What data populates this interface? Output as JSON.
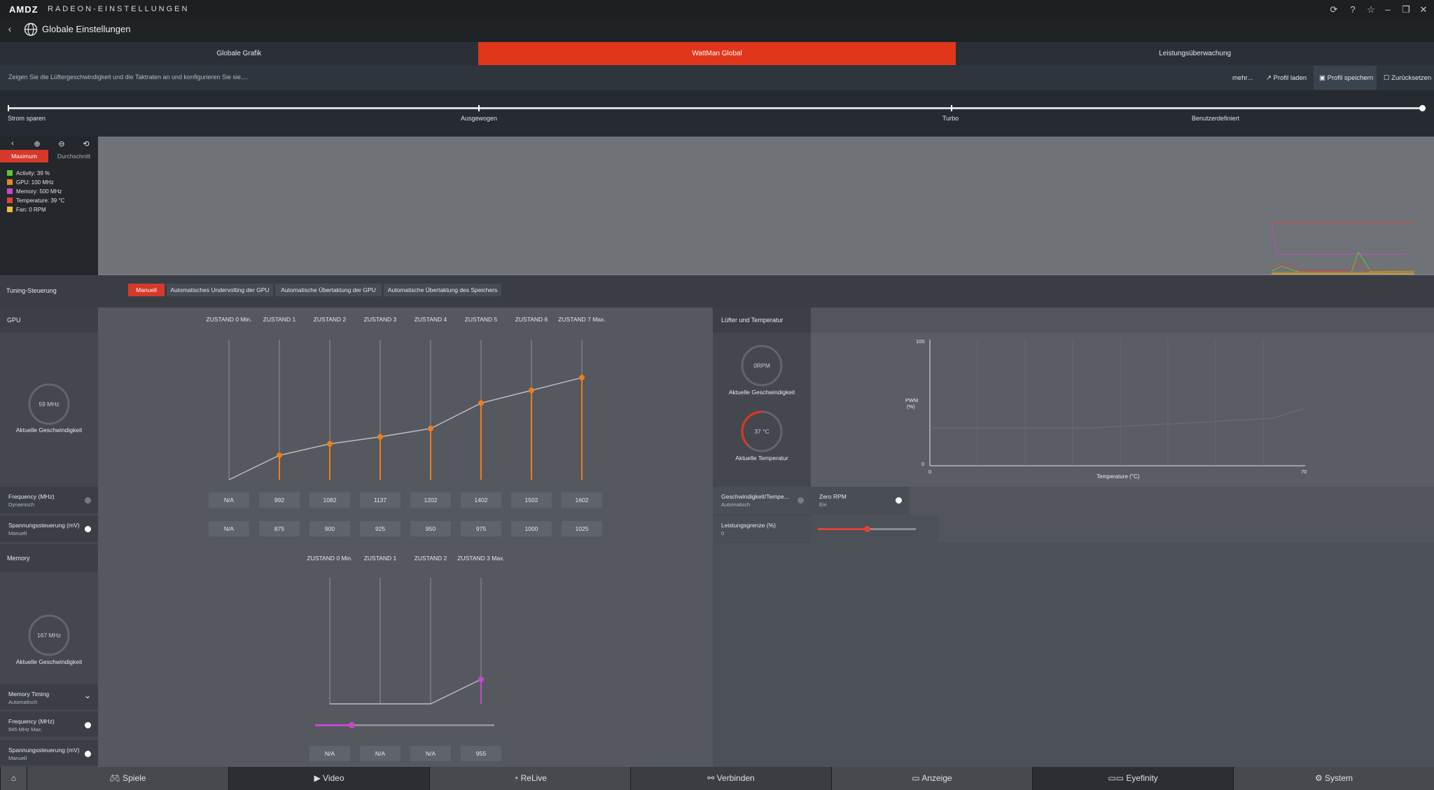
{
  "app": {
    "logo": "AMDZ",
    "title": "RADEON-EINSTELLUNGEN"
  },
  "titlebar_icons": [
    "refresh-icon",
    "help-icon",
    "star-icon",
    "minimize-icon",
    "restore-icon",
    "close-icon"
  ],
  "nav": {
    "title": "Globale Einstellungen"
  },
  "tabs": [
    {
      "label": "Globale Grafik"
    },
    {
      "label": "WattMan Global"
    },
    {
      "label": "Leistungsüberwachung"
    }
  ],
  "subbar": {
    "description": "Zeigen Sie die Lüftergeschwindigkeit und die Taktraten an und konfigurieren Sie sie....",
    "more": "mehr...",
    "load": "Profil laden",
    "save": "Profil speichern",
    "reset": "Zurücksetzen"
  },
  "presets": [
    "Strom sparen",
    "Ausgewogen",
    "Turbo",
    "Benutzerdefiniert"
  ],
  "monitor": {
    "max_label": "Maximum",
    "avg_label": "Durchschnitt",
    "legend": [
      {
        "label": "Activity: 39 %",
        "color": "#5cc53b"
      },
      {
        "label": "GPU: 100 MHz",
        "color": "#e08a1e"
      },
      {
        "label": "Memory: 500 MHz",
        "color": "#c548c9"
      },
      {
        "label": "Temperature: 39 °C",
        "color": "#e0423a"
      },
      {
        "label": "Fan: 0 RPM",
        "color": "#e8c232"
      }
    ]
  },
  "tuning": {
    "label": "Tuning-Steuerung",
    "buttons": [
      "Manuell",
      "Automatisches Undervolting der GPU",
      "Automatische Übertaktung der GPU",
      "Automatische Übertaktung des Speichers"
    ]
  },
  "gpu": {
    "label": "GPU",
    "speed": "59 MHz",
    "speed_label": "Aktuelle Geschwindigkeit",
    "states": [
      "ZUSTAND 0 Min.",
      "ZUSTAND 1",
      "ZUSTAND 2",
      "ZUSTAND 3",
      "ZUSTAND 4",
      "ZUSTAND 5",
      "ZUSTAND 6",
      "ZUSTAND 7 Max."
    ],
    "frequency_label": "Frequency (MHz)",
    "frequency_sub": "Dynamisch",
    "frequency": [
      "N/A",
      "992",
      "1082",
      "1137",
      "1202",
      "1402",
      "1502",
      "1602"
    ],
    "voltage_label": "Spannungssteuerung (mV)",
    "voltage_sub": "Manuell",
    "voltage": [
      "N/A",
      "875",
      "900",
      "925",
      "950",
      "975",
      "1000",
      "1025"
    ]
  },
  "memory": {
    "label": "Memory",
    "speed": "167 MHz",
    "speed_label": "Aktuelle Geschwindigkeit",
    "states": [
      "ZUSTAND 0 Min.",
      "ZUSTAND 1",
      "ZUSTAND 2",
      "ZUSTAND 3 Max."
    ],
    "timing_label": "Memory Timing",
    "timing_sub": "Automatisch",
    "frequency_label": "Frequency (MHz)",
    "frequency_sub": "945 MHz Max.",
    "voltage_label": "Spannungssteuerung (mV)",
    "voltage_sub": "Manuell",
    "voltage": [
      "N/A",
      "N/A",
      "N/A",
      "955"
    ]
  },
  "fan": {
    "title": "Lüfter und Temperatur",
    "speed": "0RPM",
    "speed_label": "Aktuelle Geschwindigkeit",
    "temp": "37 °C",
    "temp_label": "Aktuelle Temperatur",
    "y_max": "100",
    "y_min": "0",
    "y_label_1": "PWM",
    "y_label_2": "(%)",
    "x_min": "0",
    "x_max": "70",
    "x_label": "Temperature (°C)",
    "speedtemp_label": "Geschwindigkeit/Tempe...",
    "speedtemp_sub": "Automatisch",
    "zero_rpm_label": "Zero RPM",
    "zero_rpm_sub": "Ein",
    "power_label": "Leistungsgrenze (%)",
    "power_value": "0"
  },
  "bottom": [
    "Spiele",
    "Video",
    "ReLive",
    "Verbinden",
    "Anzeige",
    "Eyefinity",
    "System"
  ]
}
